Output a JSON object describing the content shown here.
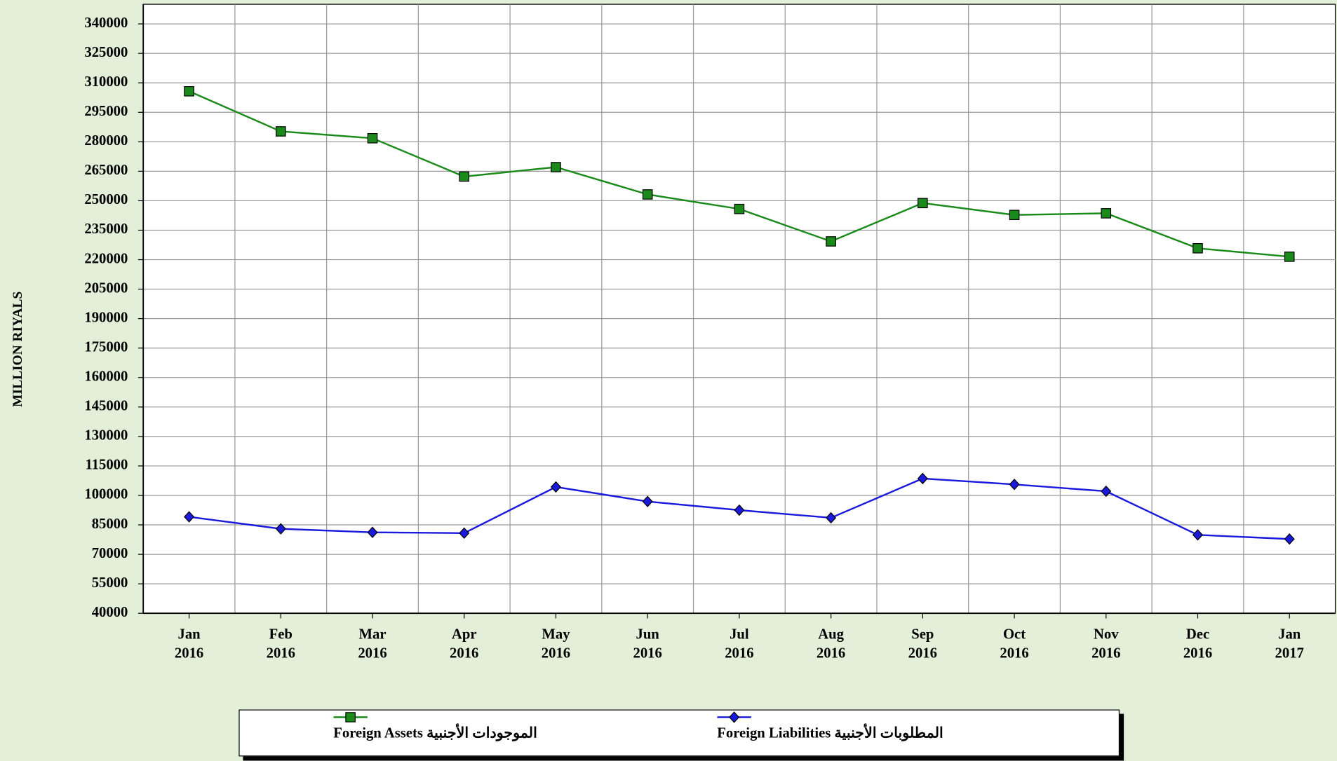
{
  "chart_data": {
    "type": "line",
    "y_label": "MILLION RIYALS",
    "categories": [
      "Jan 2016",
      "Feb 2016",
      "Mar 2016",
      "Apr 2016",
      "May 2016",
      "Jun 2016",
      "Jul 2016",
      "Aug 2016",
      "Sep 2016",
      "Oct 2016",
      "Nov 2016",
      "Dec 2016",
      "Jan 2017"
    ],
    "series": [
      {
        "name": "Foreign Assets الموجودات الأجنبية",
        "color": "#1a8a1a",
        "marker": "square",
        "values": [
          305700,
          285300,
          281800,
          262300,
          267100,
          253200,
          245800,
          229300,
          248800,
          242750,
          243600,
          225800,
          221500
        ]
      },
      {
        "name": "Foreign Liabilities المطلوبات الأجنبية",
        "color": "#1a1adc",
        "marker": "diamond",
        "values": [
          89100,
          83000,
          81200,
          80800,
          104300,
          96900,
          92500,
          88600,
          108600,
          105600,
          102100,
          79900,
          77800
        ]
      }
    ],
    "ylim": [
      40000,
      350000
    ],
    "yticks": [
      40000,
      55000,
      70000,
      85000,
      100000,
      115000,
      130000,
      145000,
      160000,
      175000,
      190000,
      205000,
      220000,
      235000,
      250000,
      265000,
      280000,
      295000,
      310000,
      325000,
      340000
    ],
    "grid": true
  }
}
